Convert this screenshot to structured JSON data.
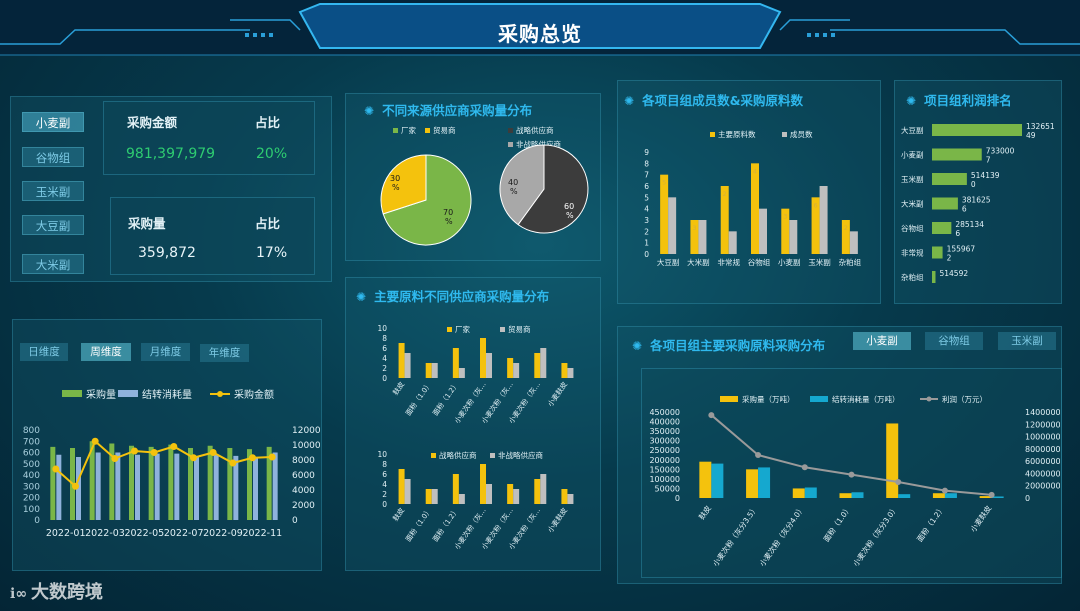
{
  "header": {
    "title": "采购总览"
  },
  "categories": {
    "items": [
      "小麦副",
      "谷物组",
      "玉米副",
      "大豆副",
      "大米副"
    ],
    "active": 0
  },
  "kpi": {
    "amount_label": "采购金额",
    "amount_value": "981,397,979",
    "amount_ratio_label": "占比",
    "amount_ratio": "20%",
    "qty_label": "采购量",
    "qty_value": "359,872",
    "qty_ratio_label": "占比",
    "qty_ratio": "17%"
  },
  "time_tabs": {
    "items": [
      "日维度",
      "周维度",
      "月维度",
      "年维度"
    ],
    "active": 1
  },
  "panels": {
    "supplier_source": "不同来源供应商采购量分布",
    "main_material": "主要原料不同供应商采购量分布",
    "member_count": "各项目组成员数&采购原料数",
    "profit_rank": "项目组利润排名",
    "group_material": "各项目组主要采购原料采购分布"
  },
  "group_tabs": {
    "items": [
      "小麦副",
      "谷物组",
      "玉米副"
    ],
    "active": 0
  },
  "watermark": "大数跨境",
  "colors": {
    "green": "#7ab648",
    "blue": "#8fb2dc",
    "yellow": "#f4c20d",
    "grey": "#bfbfbf",
    "teal": "#15a8cf",
    "line": "#9a9a9a"
  },
  "chart_data": [
    {
      "id": "trend",
      "type": "bar",
      "categories": [
        "2022-01",
        "2022-02",
        "2022-03",
        "2022-04",
        "2022-05",
        "2022-06",
        "2022-07",
        "2022-08",
        "2022-09",
        "2022-10",
        "2022-11",
        "2022-12"
      ],
      "x_tick_labels": [
        "2022-01",
        "2022-03",
        "2022-05",
        "2022-07",
        "2022-09",
        "2022-11"
      ],
      "series": [
        {
          "name": "采购量",
          "type": "bar",
          "axis": "left",
          "values": [
            650,
            640,
            700,
            680,
            660,
            650,
            670,
            640,
            660,
            640,
            630,
            650
          ]
        },
        {
          "name": "结转消耗量",
          "type": "bar",
          "axis": "left",
          "values": [
            580,
            560,
            600,
            600,
            580,
            590,
            590,
            560,
            580,
            570,
            560,
            600
          ]
        },
        {
          "name": "采购金额",
          "type": "line",
          "axis": "right",
          "values": [
            6800,
            4500,
            10500,
            8200,
            9200,
            9000,
            9800,
            8300,
            9000,
            7600,
            8300,
            8400
          ]
        }
      ],
      "yleft": [
        0,
        800
      ],
      "yleft_ticks": [
        0,
        100,
        200,
        300,
        400,
        500,
        600,
        700,
        800
      ],
      "yright": [
        0,
        12000
      ],
      "yright_ticks": [
        0,
        2000,
        4000,
        6000,
        8000,
        10000,
        12000
      ]
    },
    {
      "id": "pie1",
      "type": "pie",
      "legend": [
        "厂家",
        "贸易商"
      ],
      "slices": [
        {
          "name": "厂家",
          "value": 70,
          "label": "70 %"
        },
        {
          "name": "贸易商",
          "value": 30,
          "label": "30 %"
        }
      ]
    },
    {
      "id": "pie2",
      "type": "pie",
      "legend": [
        "战略供应商",
        "非战略供应商"
      ],
      "slices": [
        {
          "name": "战略供应商",
          "value": 60,
          "label": "60 %"
        },
        {
          "name": "非战略供应商",
          "value": 40,
          "label": "40 %"
        }
      ]
    },
    {
      "id": "mat1",
      "type": "bar",
      "categories": [
        "麸皮",
        "面粉（1.0）",
        "面粉（1.2）",
        "小麦次粉（灰...",
        "小麦次粉（灰...",
        "小麦次粉（灰...",
        "小麦麸皮"
      ],
      "series": [
        {
          "name": "厂家",
          "values": [
            7,
            3,
            6,
            8,
            4,
            5,
            3
          ]
        },
        {
          "name": "贸易商",
          "values": [
            5,
            3,
            2,
            5,
            3,
            6,
            2
          ]
        }
      ],
      "ylim": [
        0,
        10
      ],
      "yticks": [
        0,
        2,
        4,
        6,
        8,
        10
      ]
    },
    {
      "id": "mat2",
      "type": "bar",
      "categories": [
        "麸皮",
        "面粉（1.0）",
        "面粉（1.2）",
        "小麦次粉（灰...",
        "小麦次粉（灰...",
        "小麦次粉（灰...",
        "小麦麸皮"
      ],
      "series": [
        {
          "name": "战略供应商",
          "values": [
            7,
            3,
            6,
            8,
            4,
            5,
            3
          ]
        },
        {
          "name": "非战略供应商",
          "values": [
            5,
            3,
            2,
            4,
            3,
            6,
            2
          ]
        }
      ],
      "ylim": [
        0,
        10
      ],
      "yticks": [
        0,
        2,
        4,
        6,
        8,
        10
      ]
    },
    {
      "id": "members",
      "type": "bar",
      "categories": [
        "大豆副",
        "大米副",
        "非常规",
        "谷物组",
        "小麦副",
        "玉米副",
        "杂粕组"
      ],
      "series": [
        {
          "name": "主要原料数",
          "values": [
            7,
            3,
            6,
            8,
            4,
            5,
            3
          ]
        },
        {
          "name": "成员数",
          "values": [
            5,
            3,
            2,
            4,
            3,
            6,
            2
          ]
        }
      ],
      "data_labels": [
        "5",
        "3",
        "2",
        "4",
        "3",
        "6",
        "2"
      ],
      "ylim": [
        0,
        9
      ],
      "yticks": [
        0,
        1,
        2,
        3,
        4,
        5,
        6,
        7,
        8,
        9
      ]
    },
    {
      "id": "profit",
      "type": "bar",
      "orientation": "horizontal",
      "categories": [
        "大豆副",
        "小麦副",
        "玉米副",
        "大米副",
        "谷物组",
        "非常规",
        "杂粕组"
      ],
      "values": [
        13265149,
        7330007,
        5141390,
        3816256,
        2851346,
        1559672,
        514592
      ],
      "value_labels": [
        [
          "132651",
          "49"
        ],
        [
          "733000",
          "7"
        ],
        [
          "514139",
          "0"
        ],
        [
          "381625",
          "6"
        ],
        [
          "285134",
          "6"
        ],
        [
          "155967",
          "2"
        ],
        [
          "514592"
        ]
      ]
    },
    {
      "id": "group",
      "type": "bar",
      "categories": [
        "麸皮",
        "小麦次粉（灰分3.5）",
        "小麦次粉（灰分4.0）",
        "面粉（1.0）",
        "小麦次粉（灰分3.0）",
        "面粉（1.2）",
        "小麦麸皮"
      ],
      "series": [
        {
          "name": "采购量（万吨）",
          "type": "bar",
          "axis": "left",
          "values": [
            190000,
            150000,
            50000,
            25000,
            390000,
            25000,
            10000
          ]
        },
        {
          "name": "结转消耗量（万吨）",
          "type": "bar",
          "axis": "left",
          "values": [
            180000,
            160000,
            55000,
            30000,
            20000,
            25000,
            8000
          ]
        },
        {
          "name": "利润（万元）",
          "type": "line",
          "axis": "right",
          "values": [
            13500000,
            7000000,
            5000000,
            3800000,
            2600000,
            1200000,
            500000
          ]
        }
      ],
      "yleft": [
        0,
        450000
      ],
      "yleft_ticks": [
        0,
        50000,
        100000,
        150000,
        200000,
        250000,
        300000,
        350000,
        400000,
        450000
      ],
      "yright": [
        0,
        14000000
      ],
      "yright_ticks": [
        0,
        2000000,
        4000000,
        6000000,
        8000000,
        10000000,
        12000000,
        14000000
      ]
    }
  ]
}
